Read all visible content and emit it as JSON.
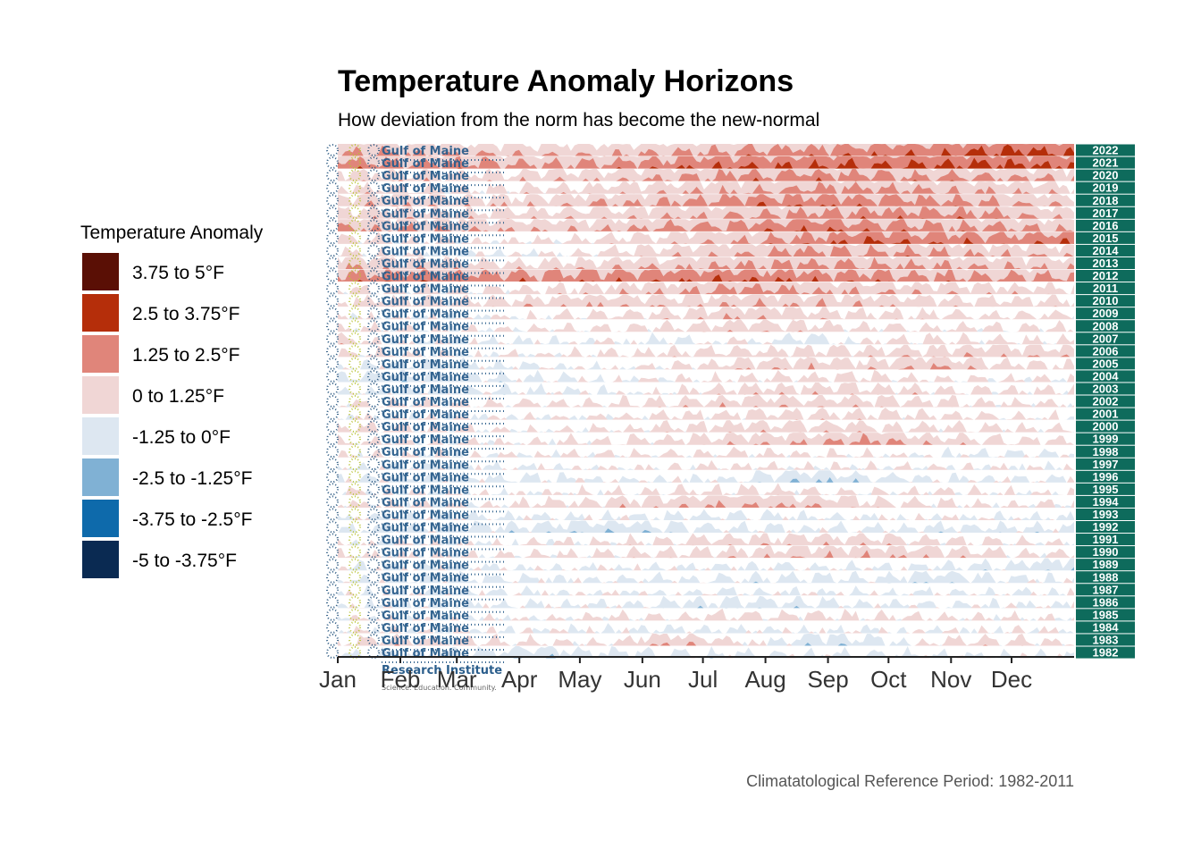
{
  "chart_data": {
    "type": "area",
    "subtype": "horizon",
    "title": "Temperature Anomaly Horizons",
    "subtitle": "How deviation from the norm has become the new-normal",
    "caption": "Climatatological Reference Period: 1982-2011",
    "xlabel": "",
    "ylabel": "",
    "x_tick_labels": [
      "Jan",
      "Feb",
      "Mar",
      "Apr",
      "May",
      "Jun",
      "Jul",
      "Aug",
      "Sep",
      "Oct",
      "Nov",
      "Dec"
    ],
    "years": [
      "2022",
      "2021",
      "2020",
      "2019",
      "2018",
      "2017",
      "2016",
      "2015",
      "2014",
      "2013",
      "2012",
      "2011",
      "2010",
      "2009",
      "2008",
      "2007",
      "2006",
      "2005",
      "2004",
      "2003",
      "2002",
      "2001",
      "2000",
      "1999",
      "1998",
      "1997",
      "1996",
      "1995",
      "1994",
      "1993",
      "1992",
      "1991",
      "1990",
      "1989",
      "1988",
      "1987",
      "1986",
      "1985",
      "1984",
      "1983",
      "1982"
    ],
    "year_band_color": "#0e6b5c",
    "legend": {
      "title": "Temperature Anomaly",
      "placement": "left",
      "entries": [
        {
          "label": "3.75 to 5°F",
          "color": "#5a0f05"
        },
        {
          "label": "2.5 to 3.75°F",
          "color": "#b52e0a"
        },
        {
          "label": "1.25 to 2.5°F",
          "color": "#e0857a"
        },
        {
          "label": "0 to 1.25°F",
          "color": "#f0d6d5"
        },
        {
          "label": "-1.25 to 0°F",
          "color": "#dde7f1"
        },
        {
          "label": "-2.5 to -1.25°F",
          "color": "#80b1d4"
        },
        {
          "label": "-3.75 to -2.5°F",
          "color": "#0e6aab"
        },
        {
          "label": "-5 to -3.75°F",
          "color": "#0a2a52"
        }
      ]
    },
    "series": [
      {
        "name": "2022",
        "monthly_anomaly": [
          1.7,
          1.5,
          1.3,
          1.2,
          1.3,
          1.5,
          1.9,
          2.1,
          2.3,
          2.6,
          3.1,
          2.8
        ]
      },
      {
        "name": "2021",
        "monthly_anomaly": [
          2.2,
          1.8,
          1.9,
          1.7,
          1.8,
          2.3,
          2.6,
          2.7,
          2.8,
          2.9,
          2.9,
          2.7
        ]
      },
      {
        "name": "2020",
        "monthly_anomaly": [
          1.0,
          0.8,
          0.7,
          0.9,
          1.1,
          1.5,
          2.0,
          2.1,
          1.9,
          1.7,
          1.6,
          1.3
        ]
      },
      {
        "name": "2019",
        "monthly_anomaly": [
          0.6,
          0.5,
          0.4,
          0.6,
          0.8,
          1.1,
          1.4,
          1.8,
          1.8,
          1.5,
          1.2,
          0.9
        ]
      },
      {
        "name": "2018",
        "monthly_anomaly": [
          1.0,
          1.2,
          0.9,
          1.0,
          1.4,
          1.7,
          2.1,
          2.3,
          2.2,
          1.9,
          1.5,
          1.2
        ]
      },
      {
        "name": "2017",
        "monthly_anomaly": [
          0.9,
          1.0,
          0.7,
          0.8,
          1.0,
          1.3,
          1.6,
          1.9,
          2.0,
          2.1,
          1.7,
          1.0
        ]
      },
      {
        "name": "2016",
        "monthly_anomaly": [
          1.6,
          1.4,
          1.3,
          1.1,
          1.3,
          1.7,
          2.0,
          2.4,
          2.2,
          1.8,
          1.6,
          1.3
        ]
      },
      {
        "name": "2015",
        "monthly_anomaly": [
          0.6,
          0.3,
          0.2,
          0.3,
          0.5,
          1.0,
          1.4,
          2.0,
          2.6,
          2.4,
          2.1,
          2.4
        ]
      },
      {
        "name": "2014",
        "monthly_anomaly": [
          0.4,
          0.1,
          -0.2,
          0.0,
          0.5,
          1.0,
          1.4,
          1.9,
          1.7,
          1.6,
          1.2,
          1.0
        ]
      },
      {
        "name": "2013",
        "monthly_anomaly": [
          1.4,
          1.0,
          0.8,
          0.7,
          0.9,
          1.3,
          1.6,
          1.9,
          1.7,
          1.5,
          1.3,
          1.1
        ]
      },
      {
        "name": "2012",
        "monthly_anomaly": [
          2.0,
          2.2,
          2.0,
          2.1,
          2.2,
          2.4,
          2.4,
          2.3,
          2.1,
          1.9,
          1.8,
          1.8
        ]
      },
      {
        "name": "2011",
        "monthly_anomaly": [
          0.5,
          0.4,
          0.3,
          0.5,
          0.8,
          1.3,
          2.0,
          1.6,
          1.2,
          1.0,
          0.8,
          0.7
        ]
      },
      {
        "name": "2010",
        "monthly_anomaly": [
          0.6,
          0.7,
          0.6,
          0.9,
          1.1,
          1.0,
          1.2,
          1.3,
          1.1,
          0.8,
          0.6,
          0.7
        ]
      },
      {
        "name": "2009",
        "monthly_anomaly": [
          0.1,
          0.0,
          -0.1,
          0.2,
          0.5,
          0.7,
          1.3,
          0.9,
          0.6,
          0.5,
          0.4,
          0.5
        ]
      },
      {
        "name": "2008",
        "monthly_anomaly": [
          0.3,
          0.2,
          0.1,
          0.2,
          0.4,
          0.6,
          0.9,
          0.7,
          0.5,
          0.3,
          0.4,
          0.3
        ]
      },
      {
        "name": "2007",
        "monthly_anomaly": [
          0.6,
          -0.1,
          -0.2,
          -0.3,
          0.1,
          -0.6,
          0.4,
          -0.9,
          0.3,
          0.5,
          0.4,
          0.3
        ]
      },
      {
        "name": "2006",
        "monthly_anomaly": [
          0.4,
          0.2,
          0.0,
          0.1,
          0.3,
          0.5,
          0.7,
          0.8,
          0.7,
          0.9,
          1.0,
          1.0
        ]
      },
      {
        "name": "2005",
        "monthly_anomaly": [
          -0.3,
          -0.4,
          -0.5,
          -0.3,
          0.0,
          0.3,
          0.8,
          1.1,
          0.9,
          1.4,
          0.6,
          0.4
        ]
      },
      {
        "name": "2004",
        "monthly_anomaly": [
          -0.6,
          -0.7,
          -0.6,
          -0.4,
          -0.1,
          0.1,
          0.4,
          0.6,
          0.5,
          0.3,
          0.2,
          0.1
        ]
      },
      {
        "name": "2003",
        "monthly_anomaly": [
          -0.2,
          -0.4,
          -0.4,
          -0.3,
          -0.2,
          0.2,
          0.7,
          0.9,
          0.8,
          0.5,
          0.4,
          0.3
        ]
      },
      {
        "name": "2002",
        "monthly_anomaly": [
          0.3,
          0.4,
          0.3,
          0.4,
          0.4,
          0.6,
          1.0,
          0.9,
          0.8,
          0.6,
          0.4,
          0.3
        ]
      },
      {
        "name": "2001",
        "monthly_anomaly": [
          0.1,
          0.0,
          -0.1,
          0.0,
          0.2,
          0.4,
          0.6,
          0.7,
          0.6,
          0.4,
          0.3,
          0.2
        ]
      },
      {
        "name": "2000",
        "monthly_anomaly": [
          0.6,
          0.4,
          0.2,
          0.1,
          0.3,
          0.5,
          0.9,
          0.8,
          0.7,
          0.5,
          0.4,
          0.3
        ]
      },
      {
        "name": "1999",
        "monthly_anomaly": [
          0.4,
          0.3,
          0.2,
          0.2,
          0.4,
          0.6,
          1.0,
          1.2,
          1.8,
          0.8,
          0.5,
          0.4
        ]
      },
      {
        "name": "1998",
        "monthly_anomaly": [
          0.2,
          0.1,
          0.0,
          0.1,
          0.2,
          0.3,
          0.4,
          0.3,
          0.2,
          -0.2,
          -0.4,
          -0.3
        ]
      },
      {
        "name": "1997",
        "monthly_anomaly": [
          -0.2,
          -0.3,
          -0.3,
          -0.2,
          0.1,
          0.2,
          0.3,
          0.1,
          0.2,
          0.1,
          0.0,
          -0.1
        ]
      },
      {
        "name": "1996",
        "monthly_anomaly": [
          -0.3,
          -0.4,
          -0.5,
          -0.4,
          -0.2,
          -0.2,
          -0.4,
          -1.3,
          -0.6,
          -0.3,
          -0.2,
          -0.2
        ]
      },
      {
        "name": "1995",
        "monthly_anomaly": [
          0.2,
          0.1,
          0.0,
          0.1,
          0.2,
          0.4,
          0.5,
          0.3,
          0.2,
          0.3,
          0.2,
          0.1
        ]
      },
      {
        "name": "1994",
        "monthly_anomaly": [
          0.3,
          0.2,
          0.1,
          0.5,
          0.7,
          1.0,
          1.5,
          1.2,
          0.6,
          0.4,
          0.3,
          0.2
        ]
      },
      {
        "name": "1993",
        "monthly_anomaly": [
          -0.2,
          -0.3,
          -0.4,
          -0.3,
          -0.2,
          -0.4,
          -0.5,
          -0.3,
          -0.1,
          0.0,
          -0.2,
          -0.3
        ]
      },
      {
        "name": "1992",
        "monthly_anomaly": [
          -0.4,
          -0.5,
          -0.6,
          -0.8,
          -1.1,
          -0.7,
          -0.4,
          -0.3,
          -0.4,
          -0.6,
          -0.5,
          -0.4
        ]
      },
      {
        "name": "1991",
        "monthly_anomaly": [
          0.1,
          0.0,
          -0.1,
          0.1,
          0.3,
          0.5,
          0.7,
          0.9,
          0.8,
          0.5,
          0.3,
          0.2
        ]
      },
      {
        "name": "1990",
        "monthly_anomaly": [
          0.3,
          0.2,
          0.2,
          0.3,
          0.4,
          0.5,
          0.8,
          1.1,
          1.2,
          0.9,
          0.5,
          0.3
        ]
      },
      {
        "name": "1989",
        "monthly_anomaly": [
          -0.2,
          -0.3,
          -0.3,
          -0.2,
          -0.1,
          -0.2,
          -0.4,
          -0.3,
          -0.2,
          -0.4,
          -0.6,
          -1.2
        ]
      },
      {
        "name": "1988",
        "monthly_anomaly": [
          -0.3,
          -0.4,
          -0.5,
          -0.4,
          -0.3,
          -0.4,
          -0.5,
          -0.6,
          -0.5,
          -1.0,
          -0.4,
          -0.3
        ]
      },
      {
        "name": "1987",
        "monthly_anomaly": [
          -0.1,
          -0.2,
          -0.3,
          -0.2,
          0.0,
          -0.2,
          -0.3,
          -0.2,
          -0.1,
          -0.3,
          -0.2,
          -0.1
        ]
      },
      {
        "name": "1986",
        "monthly_anomaly": [
          -0.2,
          -0.3,
          -0.4,
          -0.3,
          -0.2,
          -0.5,
          -0.7,
          -0.6,
          -0.4,
          -0.3,
          -0.2,
          -0.2
        ]
      },
      {
        "name": "1985",
        "monthly_anomaly": [
          0.1,
          0.0,
          -0.1,
          0.1,
          0.3,
          0.4,
          0.6,
          0.5,
          0.4,
          0.3,
          0.2,
          0.1
        ]
      },
      {
        "name": "1984",
        "monthly_anomaly": [
          0.2,
          0.1,
          0.0,
          -0.1,
          -0.2,
          -0.4,
          -0.3,
          -0.2,
          -0.1,
          0.0,
          0.1,
          0.2
        ]
      },
      {
        "name": "1983",
        "monthly_anomaly": [
          0.5,
          0.6,
          0.5,
          0.4,
          0.3,
          1.3,
          0.4,
          -1.0,
          -0.8,
          0.6,
          0.5,
          0.4
        ]
      },
      {
        "name": "1982",
        "monthly_anomaly": [
          -0.3,
          -0.4,
          -0.5,
          -1.1,
          -0.6,
          -0.5,
          -0.4,
          -0.3,
          -0.4,
          -0.3,
          -0.2,
          -0.2
        ]
      }
    ],
    "ylim": [
      -5,
      5
    ],
    "grid": false
  },
  "logo": {
    "line1": "Gulf of Maine",
    "line2": "Research Institute",
    "tagline": "Science. Education. Community."
  }
}
